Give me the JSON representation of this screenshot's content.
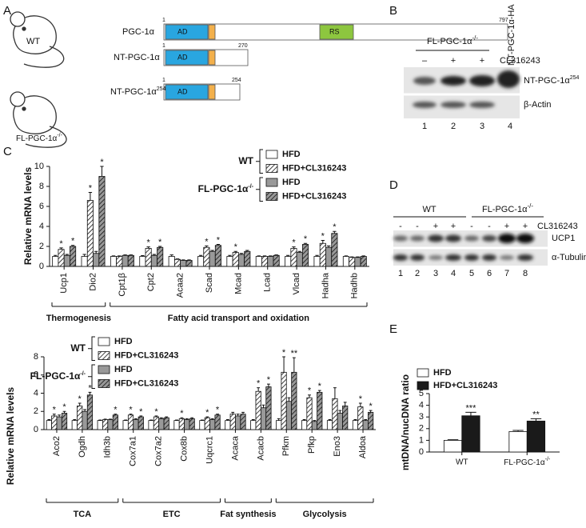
{
  "panel_labels": [
    "A",
    "B",
    "C",
    "D",
    "E"
  ],
  "panel_a": {
    "mice": [
      "WT",
      {
        "text": "FL-PGC-1α",
        "sup": "-/-"
      }
    ],
    "proteins": [
      {
        "label": "PGC-1α",
        "start": 1,
        "end": 797,
        "ad": "AD",
        "rs": "RS"
      },
      {
        "label": "NT-PGC-1α",
        "start": 1,
        "end": 270,
        "ad": "AD"
      },
      {
        "label": {
          "text": "NT-PGC-1α",
          "sup": "254"
        },
        "start": 1,
        "end": 254,
        "ad": "AD"
      }
    ]
  },
  "panel_b": {
    "group": {
      "text": "FL-PGC-1α",
      "sup": "-/-"
    },
    "treatment": "CL316243",
    "lane_signs": [
      "–",
      "+",
      "+"
    ],
    "control_lane": "NT-PGC-1α-HA",
    "bands": [
      {
        "text": "NT-PGC-1α",
        "sup": "254"
      },
      "β-Actin"
    ],
    "lanes": [
      1,
      2,
      3,
      4
    ]
  },
  "panel_d": {
    "groups": [
      "WT",
      {
        "text": "FL-PGC-1α",
        "sup": "-/-"
      }
    ],
    "treatment": "CL316243",
    "lane_signs": [
      "-",
      "-",
      "+",
      "+",
      "-",
      "-",
      "+",
      "+"
    ],
    "bands": [
      "UCP1",
      "α-Tubulin"
    ],
    "lanes": [
      1,
      2,
      3,
      4,
      5,
      6,
      7,
      8
    ]
  },
  "chart_data": [
    {
      "type": "bar",
      "y_label": "Relative mRNA levels",
      "categories": [
        "Ucp1",
        "Dio2",
        "Cpt1β",
        "Cpt2",
        "Acaa2",
        "Scad",
        "Mcad",
        "Lcad",
        "Vlcad",
        "Hadha",
        "Hadhb"
      ],
      "groups": [
        {
          "label": "Thermogenesis",
          "count": 2
        },
        {
          "label": "Fatty acid transport and oxidation",
          "count": 9
        }
      ],
      "ylim": [
        0,
        10
      ],
      "yticks": [
        0,
        2,
        4,
        6,
        8,
        10
      ],
      "legend_groups": [
        {
          "label": "WT",
          "count": 2
        },
        {
          "label": {
            "text": "FL-PGC-1α",
            "sup": "-/-"
          },
          "count": 2
        }
      ],
      "series": [
        {
          "name": "HFD",
          "color": "#ffffff",
          "pattern": "solid",
          "values": [
            1,
            1,
            1,
            1,
            1,
            1,
            1,
            1,
            1,
            1,
            1
          ],
          "errors": [
            0.1,
            0.2,
            0.05,
            0.08,
            0.15,
            0.1,
            0.1,
            0.05,
            0.1,
            0.1,
            0.05
          ]
        },
        {
          "name": "HFD+CL316243",
          "color": "#ffffff",
          "pattern": "hatch",
          "values": [
            1.7,
            6.6,
            1.0,
            1.8,
            0.7,
            1.9,
            1.4,
            1.0,
            1.8,
            2.3,
            0.9
          ],
          "errors": [
            0.15,
            0.8,
            0.05,
            0.15,
            0.05,
            0.15,
            0.1,
            0.05,
            0.15,
            0.3,
            0.05
          ],
          "significance": [
            "*",
            "*",
            null,
            "*",
            null,
            "*",
            "*",
            null,
            "*",
            "*",
            null
          ]
        },
        {
          "name": "HFD",
          "color": "#999999",
          "pattern": "solid",
          "values": [
            1.1,
            1.3,
            1.1,
            1.1,
            0.6,
            1.5,
            1.2,
            1.0,
            1.4,
            1.9,
            0.9
          ],
          "errors": [
            0.1,
            0.2,
            0.05,
            0.1,
            0.05,
            0.1,
            0.1,
            0.05,
            0.1,
            0.15,
            0.05
          ]
        },
        {
          "name": "HFD+CL316243",
          "color": "#999999",
          "pattern": "hatch",
          "values": [
            2.0,
            9.0,
            1.1,
            1.9,
            0.6,
            2.1,
            1.5,
            1.1,
            2.2,
            3.3,
            1.0
          ],
          "errors": [
            0.1,
            1.0,
            0.05,
            0.1,
            0.05,
            0.1,
            0.1,
            0.05,
            0.1,
            0.2,
            0.05
          ],
          "significance": [
            "*",
            "*",
            null,
            "*",
            null,
            "*",
            null,
            null,
            "*",
            "*",
            null
          ]
        }
      ]
    },
    {
      "type": "bar",
      "y_label": "Relative mRNA levels",
      "categories": [
        "Aco2",
        "Ogdh",
        "Idh3b",
        "Cox7a1",
        "Cox7a2",
        "Cox8b",
        "Uqcrc1",
        "Acaca",
        "Acacb",
        "Pfkm",
        "Pfkp",
        "Eno3",
        "Aldoa"
      ],
      "groups": [
        {
          "label": "TCA",
          "count": 3
        },
        {
          "label": "ETC",
          "count": 4
        },
        {
          "label": "Fat synthesis",
          "count": 2
        },
        {
          "label": "Glycolysis",
          "count": 4
        }
      ],
      "ylim": [
        0,
        8
      ],
      "yticks": [
        0,
        2,
        4,
        6,
        8
      ],
      "legend_groups": [
        {
          "label": "WT",
          "count": 2
        },
        {
          "label": {
            "text": "FL-PGC-1α",
            "sup": "-/-"
          },
          "count": 2
        }
      ],
      "series": [
        {
          "name": "HFD",
          "color": "#ffffff",
          "pattern": "solid",
          "values": [
            1,
            1,
            1,
            1,
            1,
            1,
            1,
            1,
            1,
            1,
            1,
            1,
            1
          ],
          "errors": [
            0.1,
            0.1,
            0.05,
            0.05,
            0.05,
            0.05,
            0.05,
            0.1,
            0.1,
            0.2,
            0.1,
            0.1,
            0.1
          ]
        },
        {
          "name": "HFD+CL316243",
          "color": "#ffffff",
          "pattern": "hatch",
          "values": [
            1.5,
            2.6,
            1.1,
            1.6,
            1.4,
            1.2,
            1.3,
            1.7,
            4.2,
            6.3,
            3.5,
            3.4,
            2.5
          ],
          "errors": [
            0.2,
            0.3,
            0.05,
            0.1,
            0.1,
            0.1,
            0.1,
            0.2,
            0.4,
            1.7,
            0.3,
            1.2,
            0.4
          ],
          "significance": [
            "*",
            "*",
            null,
            "*",
            "*",
            "*",
            "*",
            null,
            "*",
            "*",
            "*",
            null,
            "*"
          ]
        },
        {
          "name": "HFD",
          "color": "#999999",
          "pattern": "solid",
          "values": [
            1.4,
            2.0,
            1.1,
            1.1,
            1.2,
            1.1,
            1.1,
            1.5,
            2.4,
            3.1,
            0.9,
            1.8,
            1.0
          ],
          "errors": [
            0.2,
            0.2,
            0.05,
            0.1,
            0.1,
            0.1,
            0.1,
            0.2,
            0.3,
            0.4,
            0.1,
            0.3,
            0.1
          ]
        },
        {
          "name": "HFD+CL316243",
          "color": "#999999",
          "pattern": "hatch",
          "values": [
            1.8,
            3.8,
            1.6,
            1.4,
            1.3,
            1.2,
            1.6,
            1.7,
            4.7,
            6.3,
            4.1,
            2.6,
            1.9
          ],
          "errors": [
            0.2,
            0.3,
            0.1,
            0.1,
            0.1,
            0.1,
            0.1,
            0.2,
            0.3,
            1.6,
            0.2,
            0.4,
            0.2
          ],
          "significance": [
            "*",
            "*",
            "*",
            "*",
            null,
            null,
            "*",
            null,
            "*",
            "**",
            "*",
            null,
            "*"
          ]
        }
      ]
    },
    {
      "type": "bar",
      "y_label": "mtDNA/nucDNA ratio",
      "categories": [
        "WT",
        {
          "text": "FL-PGC-1α",
          "sup": "-/-"
        }
      ],
      "ylim": [
        0,
        5
      ],
      "yticks": [
        0,
        1,
        2,
        3,
        4,
        5
      ],
      "series": [
        {
          "name": "HFD",
          "color": "#ffffff",
          "pattern": "solid",
          "values": [
            1.0,
            1.75
          ],
          "errors": [
            0.05,
            0.1
          ]
        },
        {
          "name": "HFD+CL316243",
          "color": "#1a1a1a",
          "pattern": "solid",
          "values": [
            3.1,
            2.65
          ],
          "errors": [
            0.3,
            0.2
          ],
          "significance": [
            "***",
            "**"
          ]
        }
      ]
    }
  ]
}
